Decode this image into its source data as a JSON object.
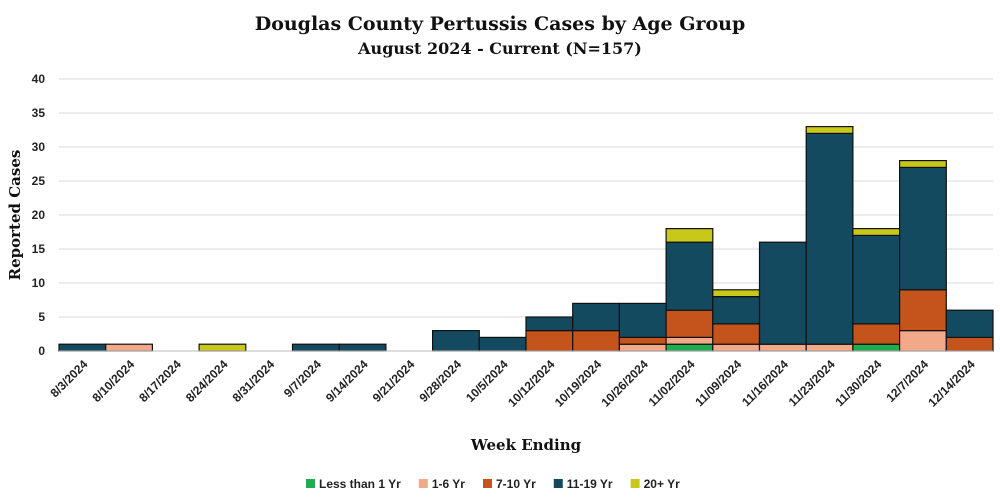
{
  "chart_data": {
    "type": "bar",
    "stacked": true,
    "title": "Douglas County Pertussis Cases by Age Group",
    "subtitle": "August 2024 - Current (N=157)",
    "xlabel": "Week Ending",
    "ylabel": "Reported Cases",
    "ylim": [
      0,
      40
    ],
    "yticks": [
      0,
      5,
      10,
      15,
      20,
      25,
      30,
      35,
      40
    ],
    "grid": true,
    "legend_position": "bottom",
    "categories": [
      "8/3/2024",
      "8/10/2024",
      "8/17/2024",
      "8/24/2024",
      "8/31/2024",
      "9/7/2024",
      "9/14/2024",
      "9/21/2024",
      "9/28/2024",
      "10/5/2024",
      "10/12/2024",
      "10/19/2024",
      "10/26/2024",
      "11/02/2024",
      "11/09/2024",
      "11/16/2024",
      "11/23/2024",
      "11/30/2024",
      "12/7/2024",
      "12/14/2024"
    ],
    "series": [
      {
        "name": "Less than 1 Yr",
        "color": "#1fae4f",
        "values": [
          0,
          0,
          0,
          0,
          0,
          0,
          0,
          0,
          0,
          0,
          0,
          0,
          0,
          1,
          0,
          0,
          0,
          1,
          0,
          0
        ]
      },
      {
        "name": "1-6 Yr",
        "color": "#f2a98a",
        "values": [
          0,
          1,
          0,
          0,
          0,
          0,
          0,
          0,
          0,
          0,
          0,
          0,
          1,
          1,
          1,
          1,
          1,
          0,
          3,
          0
        ]
      },
      {
        "name": "7-10 Yr",
        "color": "#c4531c",
        "values": [
          0,
          0,
          0,
          0,
          0,
          0,
          0,
          0,
          0,
          0,
          3,
          3,
          1,
          4,
          3,
          0,
          0,
          3,
          6,
          2
        ]
      },
      {
        "name": "11-19 Yr",
        "color": "#134a60",
        "values": [
          1,
          0,
          0,
          0,
          0,
          1,
          1,
          0,
          3,
          2,
          2,
          4,
          5,
          10,
          4,
          15,
          31,
          13,
          18,
          4
        ]
      },
      {
        "name": "20+ Yr",
        "color": "#c8c81a",
        "values": [
          0,
          0,
          0,
          1,
          0,
          0,
          0,
          0,
          0,
          0,
          0,
          0,
          0,
          2,
          1,
          0,
          1,
          1,
          1,
          0
        ]
      }
    ]
  }
}
